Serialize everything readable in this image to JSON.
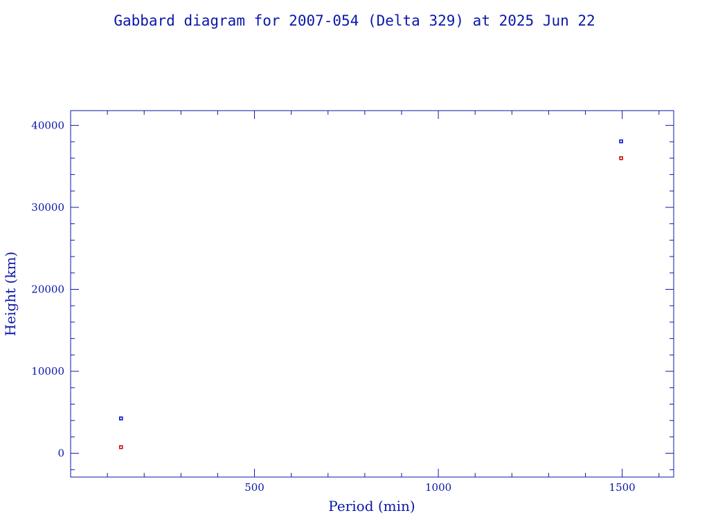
{
  "colors": {
    "axis": "#0a16a8",
    "apogee": "#0000cc",
    "perigee": "#cc0000"
  },
  "chart_data": {
    "type": "scatter",
    "title": "Gabbard diagram for 2007-054 (Delta 329) at 2025 Jun 22",
    "xlabel": "Period (min)",
    "ylabel": "Height (km)",
    "xlim": [
      0,
      1640
    ],
    "ylim": [
      -2900,
      41800
    ],
    "x_ticks": [
      500,
      1000,
      1500
    ],
    "x_tick_labels": [
      "500",
      "1000",
      "1500"
    ],
    "x_minor_step": 100,
    "y_ticks": [
      0,
      10000,
      20000,
      30000,
      40000
    ],
    "y_tick_labels": [
      "0",
      "10000",
      "20000",
      "30000",
      "40000"
    ],
    "y_minor_step": 2000,
    "grid": false,
    "series": [
      {
        "role": "apogee",
        "color": "#0000cc",
        "points": [
          {
            "x": 137,
            "y": 4250
          },
          {
            "x": 1497,
            "y": 38050
          }
        ]
      },
      {
        "role": "perigee",
        "color": "#cc0000",
        "points": [
          {
            "x": 137,
            "y": 750
          },
          {
            "x": 1497,
            "y": 36000
          }
        ]
      }
    ]
  }
}
